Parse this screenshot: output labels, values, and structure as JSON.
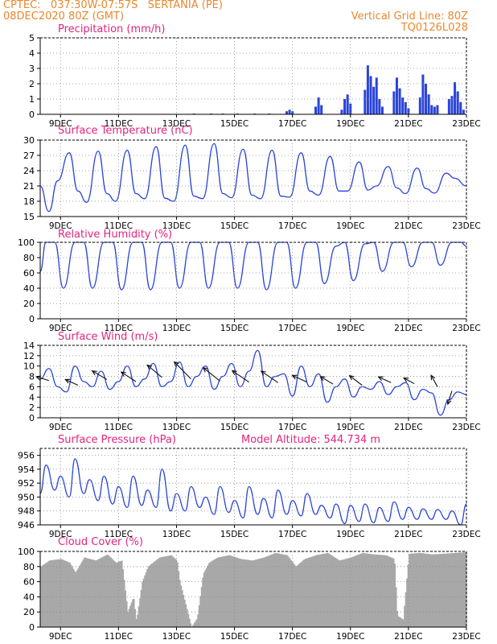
{
  "header": {
    "line1_left": "CPTEC:   037:30W-07:57S   SERTANIA (PE)",
    "line2_left": "08DEC2020 80Z (GMT)",
    "line2_right": "Vertical Grid Line: 80Z",
    "line3_right": "TQ0126L028"
  },
  "colors": {
    "header": "#e8882f",
    "title": "#e2247e",
    "series": "#2a44d8",
    "cloud": "#a8a8a8",
    "wind_arrow": "#111111",
    "grid": "#888888"
  },
  "x_axis": {
    "start": 8.3,
    "end": 23.0,
    "ticks": [
      9,
      11,
      13,
      15,
      17,
      19,
      21,
      23
    ],
    "labels": [
      "9DEC",
      "11DEC",
      "13DEC",
      "15DEC",
      "17DEC",
      "19DEC",
      "21DEC",
      "23DEC"
    ]
  },
  "chart_data": [
    {
      "id": "precip",
      "type": "bar",
      "title": "Precipitation (mm/h)",
      "ylim": [
        0,
        5
      ],
      "yticks": [
        0,
        1,
        2,
        3,
        4,
        5
      ],
      "x": [
        13.6,
        14.2,
        14.6,
        15.1,
        15.7,
        16.2,
        16.8,
        16.9,
        17.0,
        17.8,
        17.9,
        18.0,
        18.7,
        18.8,
        18.9,
        19.0,
        19.5,
        19.6,
        19.7,
        19.8,
        19.9,
        20.0,
        20.1,
        20.5,
        20.6,
        20.7,
        20.8,
        20.9,
        21.0,
        21.4,
        21.5,
        21.6,
        21.7,
        21.8,
        21.9,
        22.0,
        22.4,
        22.5,
        22.6,
        22.7,
        22.8,
        22.9
      ],
      "values": [
        0.05,
        0.05,
        0.05,
        0.05,
        0.05,
        0.05,
        0.2,
        0.3,
        0.2,
        0.5,
        1.1,
        0.6,
        0.3,
        1.0,
        1.3,
        0.7,
        1.6,
        3.2,
        2.5,
        1.8,
        2.4,
        1.0,
        0.5,
        1.5,
        2.4,
        1.7,
        1.1,
        0.8,
        0.4,
        1.1,
        2.6,
        2.0,
        1.3,
        0.6,
        0.5,
        0.6,
        1.0,
        1.2,
        2.1,
        1.5,
        0.8,
        0.3
      ]
    },
    {
      "id": "temp",
      "type": "line",
      "title": "Surface Temperature (nC)",
      "ylim": [
        15,
        30
      ],
      "yticks": [
        15,
        18,
        21,
        24,
        27,
        30
      ],
      "x": [
        8.3,
        8.6,
        8.9,
        9.3,
        9.6,
        9.9,
        10.3,
        10.6,
        10.9,
        11.3,
        11.6,
        11.9,
        12.3,
        12.6,
        12.9,
        13.3,
        13.6,
        13.9,
        14.3,
        14.6,
        14.9,
        15.3,
        15.6,
        15.9,
        16.3,
        16.6,
        16.9,
        17.3,
        17.6,
        17.9,
        18.3,
        18.6,
        18.9,
        19.3,
        19.6,
        19.9,
        20.3,
        20.6,
        20.9,
        21.3,
        21.6,
        21.9,
        22.3,
        22.6,
        23.0
      ],
      "values": [
        21,
        16,
        22,
        27.5,
        20,
        17.8,
        27.8,
        19.5,
        18,
        28,
        19.5,
        18.5,
        28.7,
        18.6,
        18,
        29,
        19,
        18.5,
        29.3,
        19.5,
        18.7,
        28.2,
        19.2,
        18.5,
        28,
        19,
        18.8,
        27.5,
        20,
        19.2,
        26.8,
        20,
        20,
        25.7,
        20.2,
        21,
        24.8,
        20.6,
        19.5,
        24.5,
        20.5,
        19.6,
        23.5,
        22.5,
        21
      ]
    },
    {
      "id": "rh",
      "type": "line",
      "title": "Relative Humidity (%)",
      "ylim": [
        0,
        100
      ],
      "yticks": [
        0,
        20,
        40,
        60,
        80,
        100
      ],
      "x": [
        8.3,
        8.5,
        8.8,
        9.1,
        9.5,
        9.8,
        10.1,
        10.5,
        10.8,
        11.1,
        11.5,
        11.8,
        12.1,
        12.5,
        12.8,
        13.1,
        13.5,
        13.8,
        14.1,
        14.5,
        14.8,
        15.1,
        15.5,
        15.8,
        16.1,
        16.5,
        16.8,
        17.1,
        17.5,
        17.8,
        18.1,
        18.5,
        18.8,
        19.1,
        19.5,
        19.8,
        20.1,
        20.5,
        20.8,
        21.1,
        21.5,
        21.8,
        22.1,
        22.5,
        22.8,
        23.0
      ],
      "values": [
        62,
        100,
        100,
        40,
        100,
        100,
        40,
        100,
        100,
        38,
        100,
        100,
        38,
        100,
        100,
        40,
        100,
        100,
        40,
        100,
        100,
        40,
        100,
        100,
        38,
        100,
        100,
        40,
        100,
        100,
        46,
        95,
        100,
        50,
        98,
        100,
        62,
        100,
        100,
        68,
        100,
        100,
        70,
        100,
        100,
        95
      ]
    },
    {
      "id": "wind",
      "type": "line",
      "title": "Surface Wind (m/s)",
      "ylim": [
        0,
        14
      ],
      "yticks": [
        0,
        2,
        4,
        6,
        8,
        10,
        12,
        14
      ],
      "x": [
        8.3,
        8.6,
        8.9,
        9.2,
        9.5,
        9.8,
        10.1,
        10.4,
        10.7,
        11.0,
        11.3,
        11.6,
        11.9,
        12.2,
        12.5,
        12.8,
        13.1,
        13.4,
        13.7,
        14.0,
        14.3,
        14.6,
        14.9,
        15.2,
        15.5,
        15.8,
        16.1,
        16.4,
        16.7,
        17.0,
        17.3,
        17.6,
        17.9,
        18.2,
        18.5,
        18.8,
        19.1,
        19.4,
        19.7,
        20.0,
        20.3,
        20.6,
        20.9,
        21.2,
        21.5,
        21.8,
        22.1,
        22.4,
        22.7,
        23.0
      ],
      "values": [
        7.5,
        9.5,
        6,
        5,
        10,
        7,
        6,
        9,
        5.5,
        7,
        10,
        6,
        7.5,
        10.5,
        6,
        7,
        10.8,
        6,
        8,
        10,
        5.5,
        8,
        10.5,
        6,
        9,
        13,
        6,
        8,
        8.5,
        4.2,
        10,
        6,
        8.5,
        3,
        6,
        7.5,
        4,
        6,
        5.5,
        7,
        4.5,
        6,
        6.8,
        3.5,
        5.5,
        4.8,
        0.5,
        3.5,
        5,
        4.5
      ],
      "arrows": {
        "x": [
          8.6,
          9.6,
          10.6,
          11.6,
          12.5,
          13.5,
          14.5,
          15.5,
          16.5,
          17.5,
          18.4,
          19.4,
          20.4,
          21.2,
          22.0,
          22.5
        ],
        "y": [
          7.2,
          6.3,
          7.4,
          7.0,
          7.8,
          7.5,
          7.1,
          6.9,
          6.8,
          6.9,
          6.5,
          6.3,
          6.8,
          6.6,
          6.0,
          5.2
        ],
        "dx": [
          -0.6,
          -0.6,
          -0.7,
          -0.7,
          -0.7,
          -0.8,
          -0.8,
          -0.8,
          -0.8,
          -0.7,
          -0.6,
          -0.6,
          -0.6,
          -0.5,
          -0.3,
          -0.2
        ],
        "dy": [
          0.4,
          0.6,
          0.9,
          1.0,
          1.3,
          1.8,
          1.4,
          1.2,
          1.2,
          0.7,
          0.8,
          1.0,
          0.6,
          0.6,
          1.2,
          -1.4
        ]
      }
    },
    {
      "id": "pressure",
      "type": "line",
      "title": "Surface Pressure (hPa)",
      "annotation": "Model Altitude: 544.734 m",
      "ylim": [
        946,
        957
      ],
      "yticks": [
        946,
        948,
        950,
        952,
        954,
        956
      ],
      "x": [
        8.3,
        8.5,
        8.8,
        9.0,
        9.3,
        9.5,
        9.8,
        10.0,
        10.3,
        10.5,
        10.8,
        11.0,
        11.3,
        11.5,
        11.8,
        12.0,
        12.3,
        12.5,
        12.8,
        13.0,
        13.3,
        13.5,
        13.8,
        14.0,
        14.3,
        14.5,
        14.8,
        15.0,
        15.3,
        15.5,
        15.8,
        16.0,
        16.3,
        16.5,
        16.8,
        17.0,
        17.3,
        17.5,
        17.8,
        18.0,
        18.3,
        18.5,
        18.8,
        19.0,
        19.3,
        19.5,
        19.8,
        20.0,
        20.3,
        20.5,
        20.8,
        21.0,
        21.3,
        21.5,
        21.8,
        22.0,
        22.3,
        22.5,
        22.8,
        23.0
      ],
      "values": [
        950.5,
        954.6,
        951,
        953,
        950,
        955.5,
        950.5,
        952.5,
        949.5,
        953,
        949,
        951.5,
        948.5,
        953,
        948.8,
        951,
        948.5,
        954,
        948,
        950.5,
        948,
        951.5,
        948.5,
        950,
        947.5,
        951.5,
        947.8,
        949.5,
        947,
        951.5,
        947.5,
        949.8,
        947,
        951,
        947.5,
        949.5,
        947.3,
        950.5,
        947.5,
        948.8,
        947,
        949,
        946.2,
        948.8,
        946.5,
        949,
        946.3,
        948.5,
        946.5,
        949.3,
        946.8,
        948.5,
        946.8,
        948.3,
        946.8,
        948.2,
        946.8,
        948,
        946,
        949
      ]
    },
    {
      "id": "cloud",
      "type": "area",
      "title": "Cloud Cover (%)",
      "ylim": [
        0,
        100
      ],
      "yticks": [
        0,
        20,
        40,
        60,
        80,
        100
      ],
      "x": [
        8.3,
        8.6,
        9.0,
        9.3,
        9.5,
        9.8,
        10.2,
        10.6,
        10.9,
        11.1,
        11.3,
        11.5,
        11.6,
        11.8,
        12.0,
        12.4,
        12.8,
        13.0,
        13.1,
        13.3,
        13.5,
        13.7,
        13.9,
        14.1,
        14.4,
        14.8,
        15.2,
        15.6,
        16.0,
        16.4,
        16.8,
        17.1,
        17.4,
        17.8,
        18.2,
        18.6,
        19.0,
        19.4,
        19.8,
        20.2,
        20.5,
        20.6,
        20.8,
        21.0,
        21.4,
        21.8,
        22.2,
        22.6,
        23.0
      ],
      "values": [
        80,
        88,
        90,
        85,
        72,
        92,
        88,
        96,
        85,
        88,
        20,
        40,
        8,
        60,
        80,
        92,
        95,
        88,
        60,
        30,
        0,
        12,
        70,
        85,
        92,
        95,
        90,
        88,
        92,
        98,
        95,
        80,
        90,
        95,
        98,
        88,
        92,
        98,
        96,
        95,
        90,
        15,
        10,
        97,
        98,
        96,
        97,
        98,
        99
      ]
    }
  ]
}
